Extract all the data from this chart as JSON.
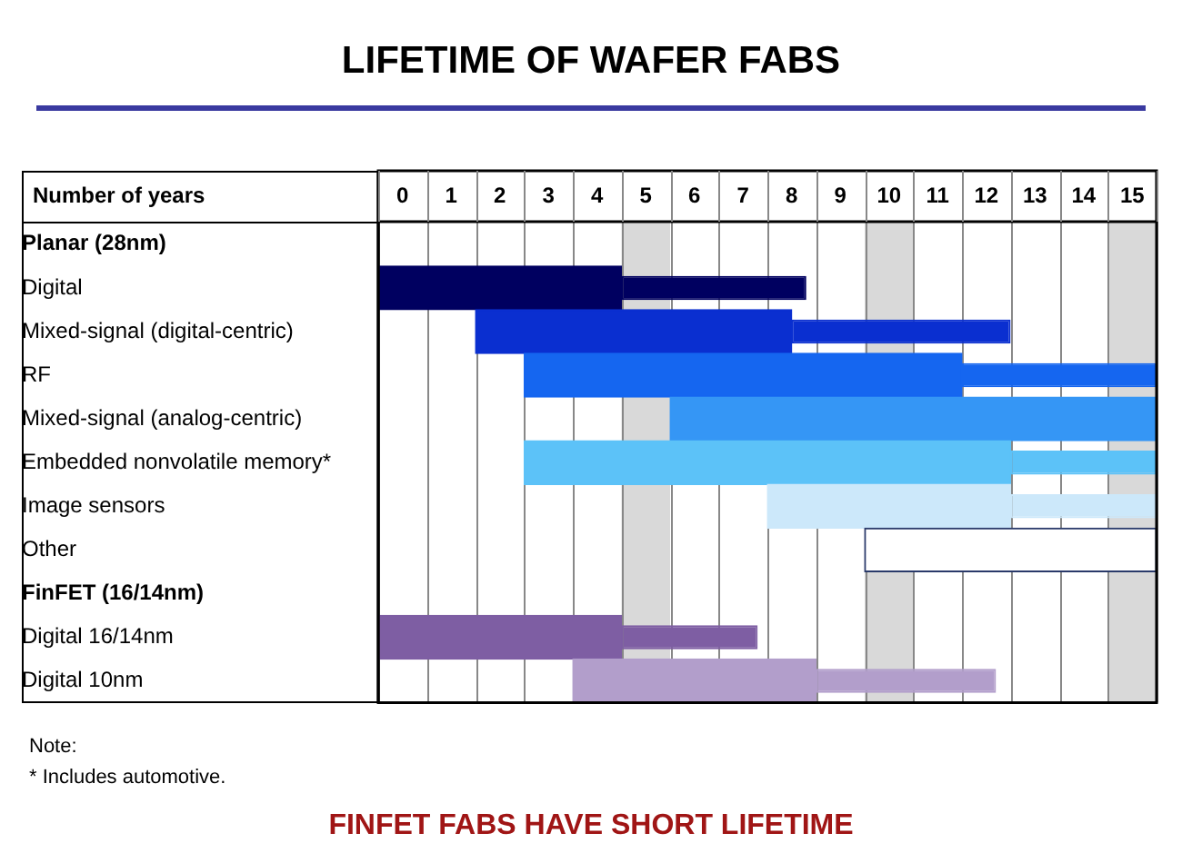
{
  "chart_data": {
    "type": "bar",
    "orientation": "horizontal",
    "title": "LIFETIME OF WAFER FABS",
    "subtitle": "FINFET FABS HAVE SHORT LIFETIME",
    "xlabel": "Number of years",
    "categories": [
      "Planar (28nm)",
      "Digital",
      "Mixed-signal (digital-centric)",
      "RF",
      "Mixed-signal (analog-centric)",
      "Embedded nonvolatile memory*",
      "Image sensors",
      "Other",
      "FinFET (16/14nm)",
      "Digital 16/14nm",
      "Digital 10nm"
    ],
    "series": [
      {
        "colors": [
          "#000060",
          "#000060",
          "#0a2fd0",
          "#1566f0",
          "#3596f5",
          "#5cc2f8",
          "#cce8fa",
          "#ffffff",
          "#7e5ea3",
          "#7e5ea3",
          "#b29ecb"
        ],
        "base": [
          null,
          0,
          2,
          3,
          6,
          3,
          8,
          10,
          null,
          0,
          4
        ],
        "values": [
          null,
          5,
          6.5,
          9,
          10,
          10,
          5,
          6,
          null,
          5,
          5
        ]
      },
      {
        "colors": [
          "#000060",
          "#000060",
          "#0a2fd0",
          "#1566f0",
          "#3596f5",
          "#5cc2f8",
          "#cce8fa",
          "#ffffff",
          "#7e5ea3",
          "#7e5ea3",
          "#b29ecb"
        ],
        "base": [
          null,
          5,
          8.5,
          12,
          null,
          13,
          13,
          null,
          null,
          5,
          9
        ],
        "values": [
          null,
          3.8,
          4.5,
          4,
          null,
          3,
          3,
          null,
          null,
          2.8,
          3.7
        ]
      }
    ],
    "xlim": [
      0,
      16
    ],
    "xticks": [
      {
        "value": 0,
        "label": null
      },
      {
        "value": 0.5,
        "label": "0"
      },
      {
        "value": 1,
        "label": null
      },
      {
        "value": 1.5,
        "label": "1"
      },
      {
        "value": 2,
        "label": null
      },
      {
        "value": 2.5,
        "label": "2"
      },
      {
        "value": 3,
        "label": null
      },
      {
        "value": 3.5,
        "label": "3"
      },
      {
        "value": 4,
        "label": null
      },
      {
        "value": 4.5,
        "label": "4"
      },
      {
        "value": 5,
        "label": null
      },
      {
        "value": 5.5,
        "label": "5"
      },
      {
        "value": 6,
        "label": null
      },
      {
        "value": 6.5,
        "label": "6"
      },
      {
        "value": 7,
        "label": null
      },
      {
        "value": 7.5,
        "label": "7"
      },
      {
        "value": 8,
        "label": null
      },
      {
        "value": 8.5,
        "label": "8"
      },
      {
        "value": 9,
        "label": null
      },
      {
        "value": 9.5,
        "label": "9"
      },
      {
        "value": 10,
        "label": null
      },
      {
        "value": 10.5,
        "label": "10"
      },
      {
        "value": 11,
        "label": null
      },
      {
        "value": 11.5,
        "label": "11"
      },
      {
        "value": 12,
        "label": null
      },
      {
        "value": 12.5,
        "label": "12"
      },
      {
        "value": 13,
        "label": null
      },
      {
        "value": 13.5,
        "label": "13"
      },
      {
        "value": 14,
        "label": null
      },
      {
        "value": 14.5,
        "label": "14"
      },
      {
        "value": 15,
        "label": null
      },
      {
        "value": 15.5,
        "label": "15"
      },
      {
        "value": 16,
        "label": null
      }
    ],
    "bands": [
      {
        "axis": "x",
        "from": 5,
        "to": 6,
        "color": "#d9d9d9"
      },
      {
        "axis": "x",
        "from": 10,
        "to": 11,
        "color": "#d9d9d9"
      },
      {
        "axis": "x",
        "from": 15,
        "to": 16,
        "color": "#d9d9d9"
      }
    ],
    "grid": "x",
    "legend": false,
    "annotations": [
      "Note:",
      "* Includes automotive."
    ]
  }
}
